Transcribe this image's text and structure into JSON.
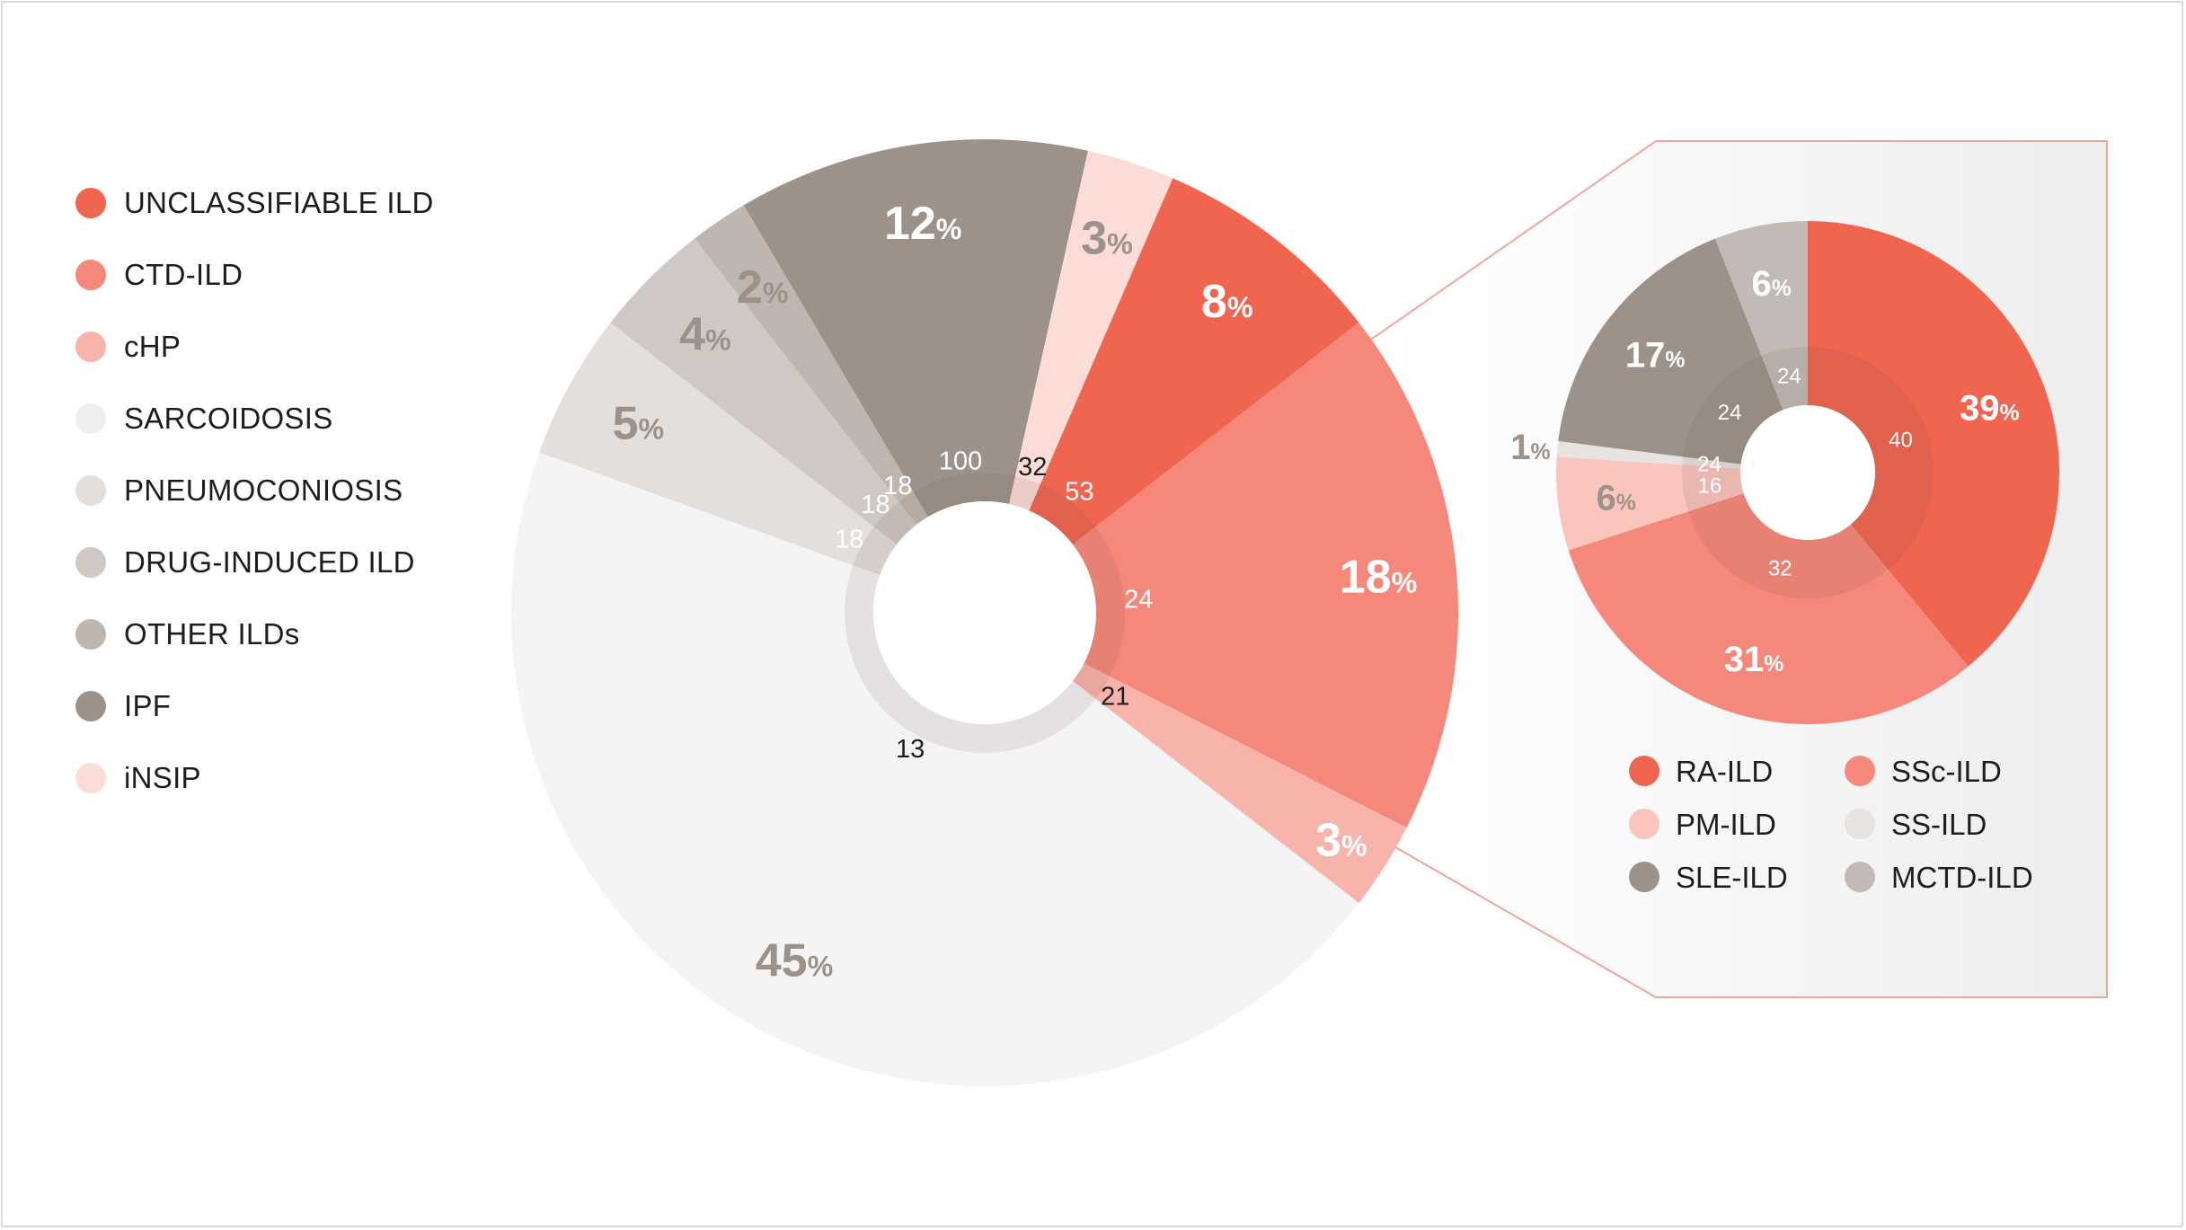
{
  "colors": {
    "unclassifiable": "#ef6550",
    "ctd": "#f5887a",
    "chp": "#f8b3aa",
    "sarcoidosis": "#f4f4f4",
    "pneumoconiosis": "#e2dfdd",
    "drug": "#cfc8c4",
    "other": "#bfb6b0",
    "ipf": "#9d928a",
    "insip": "#fbdcd7",
    "ra": "#ef6550",
    "ssc": "#f5887a",
    "pm": "#f9c5bd",
    "ss": "#e6e3e1",
    "sle": "#9d928a",
    "mctd": "#c1bab6"
  },
  "chart_data": [
    {
      "type": "pie",
      "variant": "donut",
      "legend_position": "left",
      "legend": [
        {
          "label": "UNCLASSIFIABLE ILD",
          "color": "#ef6550"
        },
        {
          "label": "CTD-ILD",
          "color": "#f5887a"
        },
        {
          "label": "cHP",
          "color": "#f8b3aa"
        },
        {
          "label": "SARCOIDOSIS",
          "color": "#f4f4f4"
        },
        {
          "label": "PNEUMOCONIOSIS",
          "color": "#e2dfdd"
        },
        {
          "label": "DRUG-INDUCED ILD",
          "color": "#cfc8c4"
        },
        {
          "label": "OTHER ILDs",
          "color": "#bfb6b0"
        },
        {
          "label": "IPF",
          "color": "#9d928a"
        },
        {
          "label": "iNSIP",
          "color": "#fbdcd7"
        }
      ],
      "slices": [
        {
          "category": "UNCLASSIFIABLE ILD",
          "value": 8,
          "label": "8",
          "unit": "%",
          "inner_value": "53",
          "color": "#ef6550"
        },
        {
          "category": "CTD-ILD",
          "value": 18,
          "label": "18",
          "unit": "%",
          "inner_value": "24",
          "color": "#f5887a"
        },
        {
          "category": "cHP",
          "value": 3,
          "label": "3",
          "unit": "%",
          "inner_value": "21",
          "color": "#f8b3aa"
        },
        {
          "category": "SARCOIDOSIS",
          "value": 45,
          "label": "45",
          "unit": "%",
          "inner_value": "13",
          "color": "#f4f4f4"
        },
        {
          "category": "PNEUMOCONIOSIS",
          "value": 5,
          "label": "5",
          "unit": "%",
          "inner_value": "18",
          "color": "#e2dfdd"
        },
        {
          "category": "DRUG-INDUCED ILD",
          "value": 4,
          "label": "4",
          "unit": "%",
          "inner_value": "18",
          "color": "#cfc8c4"
        },
        {
          "category": "OTHER ILDs",
          "value": 2,
          "label": "2",
          "unit": "%",
          "inner_value": "18",
          "color": "#bfb6b0"
        },
        {
          "category": "IPF",
          "value": 12,
          "label": "12",
          "unit": "%",
          "inner_value": "100",
          "color": "#9d928a"
        },
        {
          "category": "iNSIP",
          "value": 3,
          "label": "3",
          "unit": "%",
          "inner_value": "32",
          "color": "#fbdcd7"
        }
      ]
    },
    {
      "type": "pie",
      "variant": "donut",
      "breakout_of": "CTD-ILD",
      "legend_position": "bottom",
      "legend": [
        {
          "label": "RA-ILD",
          "color": "#ef6550"
        },
        {
          "label": "SSc-ILD",
          "color": "#f5887a"
        },
        {
          "label": "PM-ILD",
          "color": "#f9c5bd"
        },
        {
          "label": "SS-ILD",
          "color": "#e6e3e1"
        },
        {
          "label": "SLE-ILD",
          "color": "#9d928a"
        },
        {
          "label": "MCTD-ILD",
          "color": "#c1bab6"
        }
      ],
      "slices": [
        {
          "category": "RA-ILD",
          "value": 39,
          "label": "39",
          "unit": "%",
          "inner_value": "40",
          "color": "#ef6550"
        },
        {
          "category": "SSc-ILD",
          "value": 31,
          "label": "31",
          "unit": "%",
          "inner_value": "32",
          "color": "#f5887a"
        },
        {
          "category": "PM-ILD",
          "value": 6,
          "label": "6",
          "unit": "%",
          "inner_value": "16",
          "color": "#f9c5bd"
        },
        {
          "category": "SS-ILD",
          "value": 1,
          "label": "1",
          "unit": "%",
          "inner_value": "24",
          "color": "#e6e3e1"
        },
        {
          "category": "SLE-ILD",
          "value": 17,
          "label": "17",
          "unit": "%",
          "inner_value": "24",
          "color": "#9d928a"
        },
        {
          "category": "MCTD-ILD",
          "value": 6,
          "label": "6",
          "unit": "%",
          "inner_value": "24",
          "color": "#c1bab6"
        }
      ]
    }
  ]
}
